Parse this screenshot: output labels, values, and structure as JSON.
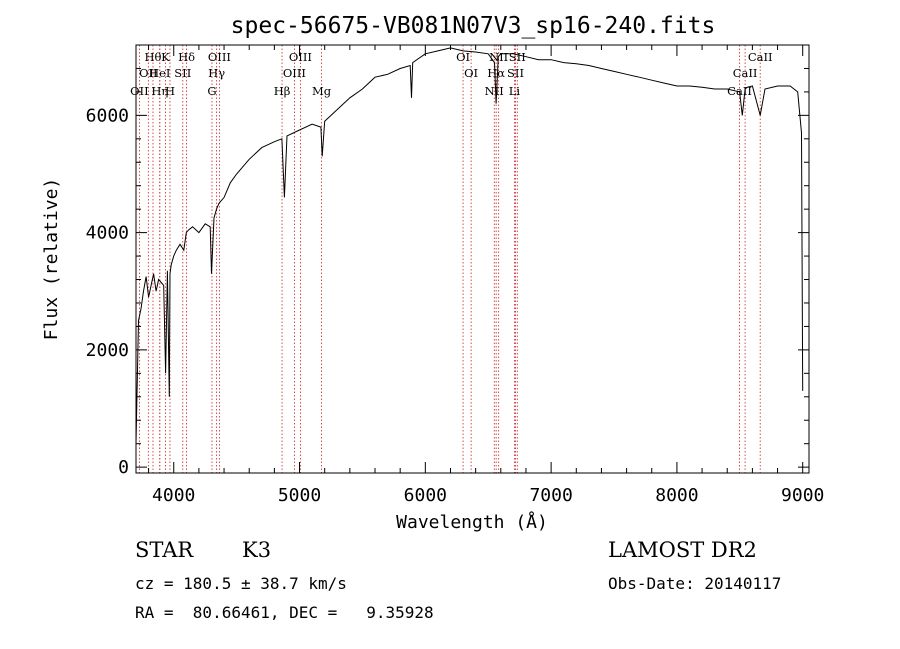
{
  "chart_data": {
    "type": "line",
    "title": "spec-56675-VB081N07V3_sp16-240.fits",
    "xlabel": "Wavelength (Å)",
    "ylabel": "Flux (relative)",
    "xlim": [
      3700,
      9050
    ],
    "ylim": [
      -100,
      7200
    ],
    "x_ticks": [
      "4000",
      "5000",
      "6000",
      "7000",
      "8000",
      "9000"
    ],
    "y_ticks": [
      "0",
      "2000",
      "4000",
      "6000"
    ],
    "series": [
      {
        "x": [
          3700,
          3720,
          3740,
          3760,
          3780,
          3800,
          3820,
          3840,
          3860,
          3880,
          3900,
          3920,
          3935,
          3950,
          3965,
          3970,
          3980,
          4000,
          4020,
          4050,
          4080,
          4100,
          4120,
          4150,
          4200,
          4250,
          4290,
          4300,
          4320,
          4340,
          4360,
          4400,
          4450,
          4500,
          4600,
          4700,
          4800,
          4860,
          4880,
          4900,
          5000,
          5100,
          5170,
          5180,
          5200,
          5300,
          5400,
          5500,
          5600,
          5700,
          5800,
          5880,
          5890,
          5900,
          6000,
          6100,
          6200,
          6300,
          6400,
          6500,
          6550,
          6563,
          6580,
          6600,
          6700,
          6800,
          6900,
          7000,
          7100,
          7200,
          7300,
          7400,
          7500,
          7600,
          7700,
          7800,
          7900,
          8000,
          8100,
          8200,
          8300,
          8400,
          8498,
          8520,
          8542,
          8560,
          8600,
          8662,
          8700,
          8800,
          8900,
          8960,
          8990,
          9000
        ],
        "y": [
          400,
          2500,
          2700,
          3000,
          3250,
          2900,
          3100,
          3300,
          3000,
          3200,
          3150,
          3100,
          1600,
          3350,
          1200,
          3300,
          3450,
          3600,
          3700,
          3800,
          3700,
          4000,
          4050,
          4100,
          4000,
          4150,
          4100,
          3300,
          4250,
          4400,
          4500,
          4600,
          4850,
          5000,
          5250,
          5450,
          5550,
          5600,
          4600,
          5650,
          5750,
          5850,
          5800,
          5300,
          5900,
          6100,
          6300,
          6450,
          6650,
          6700,
          6800,
          6850,
          6300,
          6900,
          7050,
          7100,
          7150,
          7100,
          7080,
          7050,
          6900,
          6200,
          7000,
          7050,
          7050,
          7000,
          6950,
          6950,
          6900,
          6880,
          6850,
          6800,
          6750,
          6700,
          6650,
          6600,
          6550,
          6500,
          6500,
          6480,
          6450,
          6450,
          6400,
          6000,
          6450,
          6480,
          6500,
          6000,
          6450,
          6500,
          6500,
          6400,
          5700,
          1300
        ]
      }
    ],
    "spectral_lines": [
      {
        "wl": 3727,
        "labels": [
          "OII"
        ],
        "row": 3
      },
      {
        "wl": 3798,
        "labels": [
          "OII"
        ],
        "row": 2
      },
      {
        "wl": 3835,
        "labels": [
          "Hθ"
        ],
        "row": 1
      },
      {
        "wl": 3889,
        "labels": [
          "HeI"
        ],
        "row": 2
      },
      {
        "wl": 3889,
        "labels": [
          "Hη"
        ],
        "row": 3
      },
      {
        "wl": 3934,
        "labels": [
          "K"
        ],
        "row": 1
      },
      {
        "wl": 3970,
        "labels": [
          "H"
        ],
        "row": 3
      },
      {
        "wl": 4072,
        "labels": [
          "SII"
        ],
        "row": 2
      },
      {
        "wl": 4102,
        "labels": [
          "Hδ"
        ],
        "row": 1
      },
      {
        "wl": 4304,
        "labels": [
          "G"
        ],
        "row": 3
      },
      {
        "wl": 4341,
        "labels": [
          "Hγ"
        ],
        "row": 2
      },
      {
        "wl": 4363,
        "labels": [
          "OIII"
        ],
        "row": 1
      },
      {
        "wl": 4861,
        "labels": [
          "Hβ"
        ],
        "row": 3
      },
      {
        "wl": 4959,
        "labels": [
          "OIII"
        ],
        "row": 2
      },
      {
        "wl": 5007,
        "labels": [
          "OIII"
        ],
        "row": 1
      },
      {
        "wl": 5175,
        "labels": [
          "Mg"
        ],
        "row": 3
      },
      {
        "wl": 6300,
        "labels": [
          "OI"
        ],
        "row": 1
      },
      {
        "wl": 6364,
        "labels": [
          "OI"
        ],
        "row": 2
      },
      {
        "wl": 6548,
        "labels": [
          "NII"
        ],
        "row": 3
      },
      {
        "wl": 6563,
        "labels": [
          "Hα"
        ],
        "row": 2
      },
      {
        "wl": 6583,
        "labels": [
          "NII"
        ],
        "row": 1
      },
      {
        "wl": 6708,
        "labels": [
          "Li"
        ],
        "row": 3
      },
      {
        "wl": 6717,
        "labels": [
          "SII"
        ],
        "row": 2
      },
      {
        "wl": 6731,
        "labels": [
          "SII"
        ],
        "row": 1
      },
      {
        "wl": 8498,
        "labels": [
          "CaII"
        ],
        "row": 3
      },
      {
        "wl": 8542,
        "labels": [
          "CaII"
        ],
        "row": 2
      },
      {
        "wl": 8662,
        "labels": [
          "CaII"
        ],
        "row": 1
      }
    ],
    "colors": {
      "spectrum": "#000000",
      "line_markers": "#cc2222",
      "axes": "#000000"
    }
  },
  "footer": {
    "object_type": "STAR",
    "subclass": "K3",
    "survey": "LAMOST DR2",
    "cz": "cz = 180.5 ± 38.7 km/s",
    "obs_date": "Obs-Date: 20140117",
    "coords": "RA =  80.66461, DEC =   9.35928"
  }
}
